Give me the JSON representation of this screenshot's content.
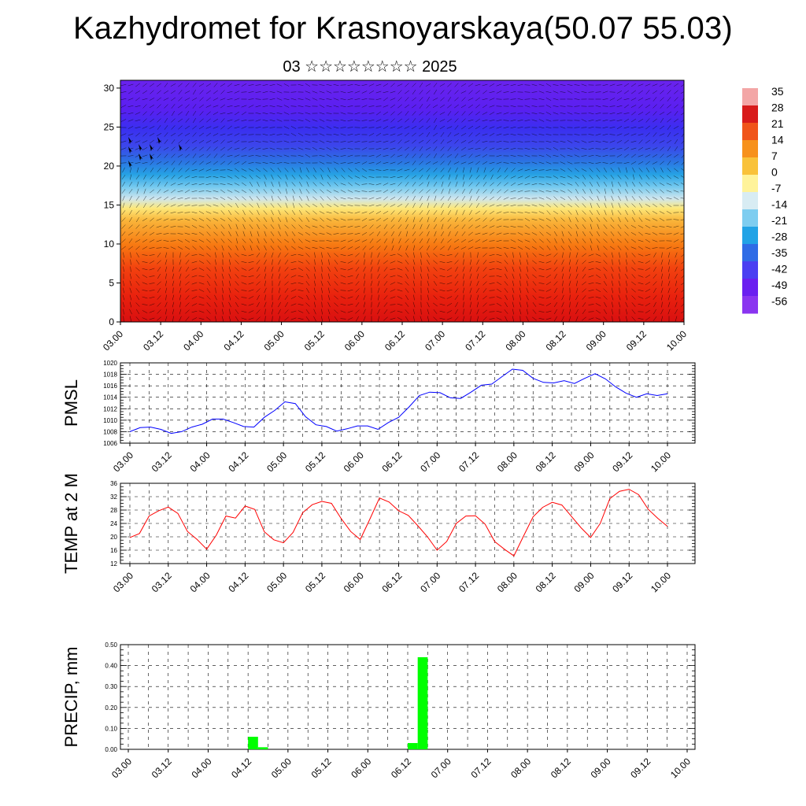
{
  "title": "Kazhydromet for Krasnoyarskaya(50.07 55.03)",
  "subtitle": "03 ☆☆☆☆☆☆☆☆ 2025",
  "chart_data": [
    {
      "type": "heatmap",
      "x_ticks": [
        "03.00",
        "03.12",
        "04.00",
        "04.12",
        "05.00",
        "05.12",
        "06.00",
        "06.12",
        "07.00",
        "07.12",
        "08.00",
        "08.12",
        "09.00",
        "09.12",
        "10.00"
      ],
      "y_ticks": [
        "0",
        "5",
        "10",
        "15",
        "20",
        "25",
        "30"
      ],
      "ylim": [
        0,
        31
      ],
      "colorbar_labels": [
        "35",
        "28",
        "21",
        "14",
        "7",
        "0",
        "-7",
        "-14",
        "-21",
        "-28",
        "-35",
        "-42",
        "-49",
        "-56"
      ],
      "colorbar_colors": [
        "#f3a6a6",
        "#d81b1b",
        "#f0541a",
        "#f7911c",
        "#f9c23a",
        "#fff39a",
        "#d8ecf3",
        "#7ecdf0",
        "#22a3e6",
        "#2f6ce6",
        "#4a3ff2",
        "#6a1ff0",
        "#8a35f0"
      ],
      "vector_overlay": "wind arrows"
    },
    {
      "type": "line",
      "ylabel": "PMSL",
      "ylim": [
        1006,
        1020
      ],
      "yticks": [
        "1020",
        "1018",
        "1016",
        "1014",
        "1012",
        "1010",
        "1008",
        "1006"
      ],
      "x_ticks": [
        "03.00",
        "03.12",
        "04.00",
        "04.12",
        "05.00",
        "05.12",
        "06.00",
        "06.12",
        "07.00",
        "07.12",
        "08.00",
        "08.12",
        "09.00",
        "09.12",
        "10.00"
      ],
      "series": [
        {
          "color": "#0000ff",
          "values": [
            1008.0,
            1008.7,
            1008.8,
            1008.4,
            1007.7,
            1008.0,
            1008.8,
            1009.3,
            1010.2,
            1010.2,
            1009.6,
            1008.9,
            1008.8,
            1010.5,
            1011.7,
            1013.2,
            1012.9,
            1010.6,
            1009.2,
            1008.9,
            1008.1,
            1008.5,
            1009.0,
            1009.0,
            1008.4,
            1009.6,
            1010.5,
            1012.3,
            1014.3,
            1014.9,
            1014.8,
            1013.9,
            1013.8,
            1014.9,
            1016.1,
            1016.3,
            1017.6,
            1018.9,
            1018.7,
            1017.3,
            1016.6,
            1016.5,
            1016.9,
            1016.4,
            1017.3,
            1018.1,
            1017.2,
            1015.8,
            1014.7,
            1014.0,
            1014.6,
            1014.3,
            1014.6
          ]
        }
      ]
    },
    {
      "type": "line",
      "ylabel": "TEMP at 2 M",
      "ylim": [
        12,
        36
      ],
      "yticks": [
        "36",
        "32",
        "28",
        "24",
        "20",
        "16",
        "12"
      ],
      "x_ticks": [
        "03.00",
        "03.12",
        "04.00",
        "04.12",
        "05.00",
        "05.12",
        "06.00",
        "06.12",
        "07.00",
        "07.12",
        "08.00",
        "08.12",
        "09.00",
        "09.12",
        "10.00"
      ],
      "series": [
        {
          "color": "#ff0000",
          "values": [
            19.8,
            21.0,
            26.2,
            27.8,
            28.9,
            27.0,
            21.6,
            19.2,
            16.3,
            20.5,
            26.2,
            25.6,
            29.2,
            28.2,
            21.5,
            19.1,
            18.2,
            21.3,
            27.2,
            29.6,
            30.6,
            30.0,
            25.5,
            21.6,
            19.2,
            25.3,
            31.6,
            30.4,
            27.8,
            26.4,
            23.3,
            20.0,
            16.0,
            18.6,
            24.0,
            26.2,
            26.3,
            23.8,
            18.6,
            16.3,
            14.3,
            20.2,
            26.0,
            28.8,
            30.3,
            29.5,
            26.1,
            22.7,
            19.8,
            24.0,
            31.4,
            33.6,
            34.2,
            32.6,
            28.2,
            25.5,
            23.1
          ]
        }
      ]
    },
    {
      "type": "bar",
      "ylabel": "PRECIP, mm",
      "ylim": [
        0,
        0.5
      ],
      "yticks": [
        "0.50",
        "0.40",
        "0.30",
        "0.20",
        "0.10",
        "0.00"
      ],
      "x_ticks": [
        "03.00",
        "03.12",
        "04.00",
        "04.12",
        "05.00",
        "05.12",
        "06.00",
        "06.12",
        "07.00",
        "07.12",
        "08.00",
        "08.12",
        "09.00",
        "09.12",
        "10.00"
      ],
      "bars": [
        {
          "t": 1.5,
          "value": 0.06
        },
        {
          "t": 1.625,
          "value": 0.01
        },
        {
          "t": 3.5,
          "value": 0.03
        },
        {
          "t": 3.625,
          "value": 0.44
        }
      ],
      "color": "#00ff00"
    }
  ]
}
